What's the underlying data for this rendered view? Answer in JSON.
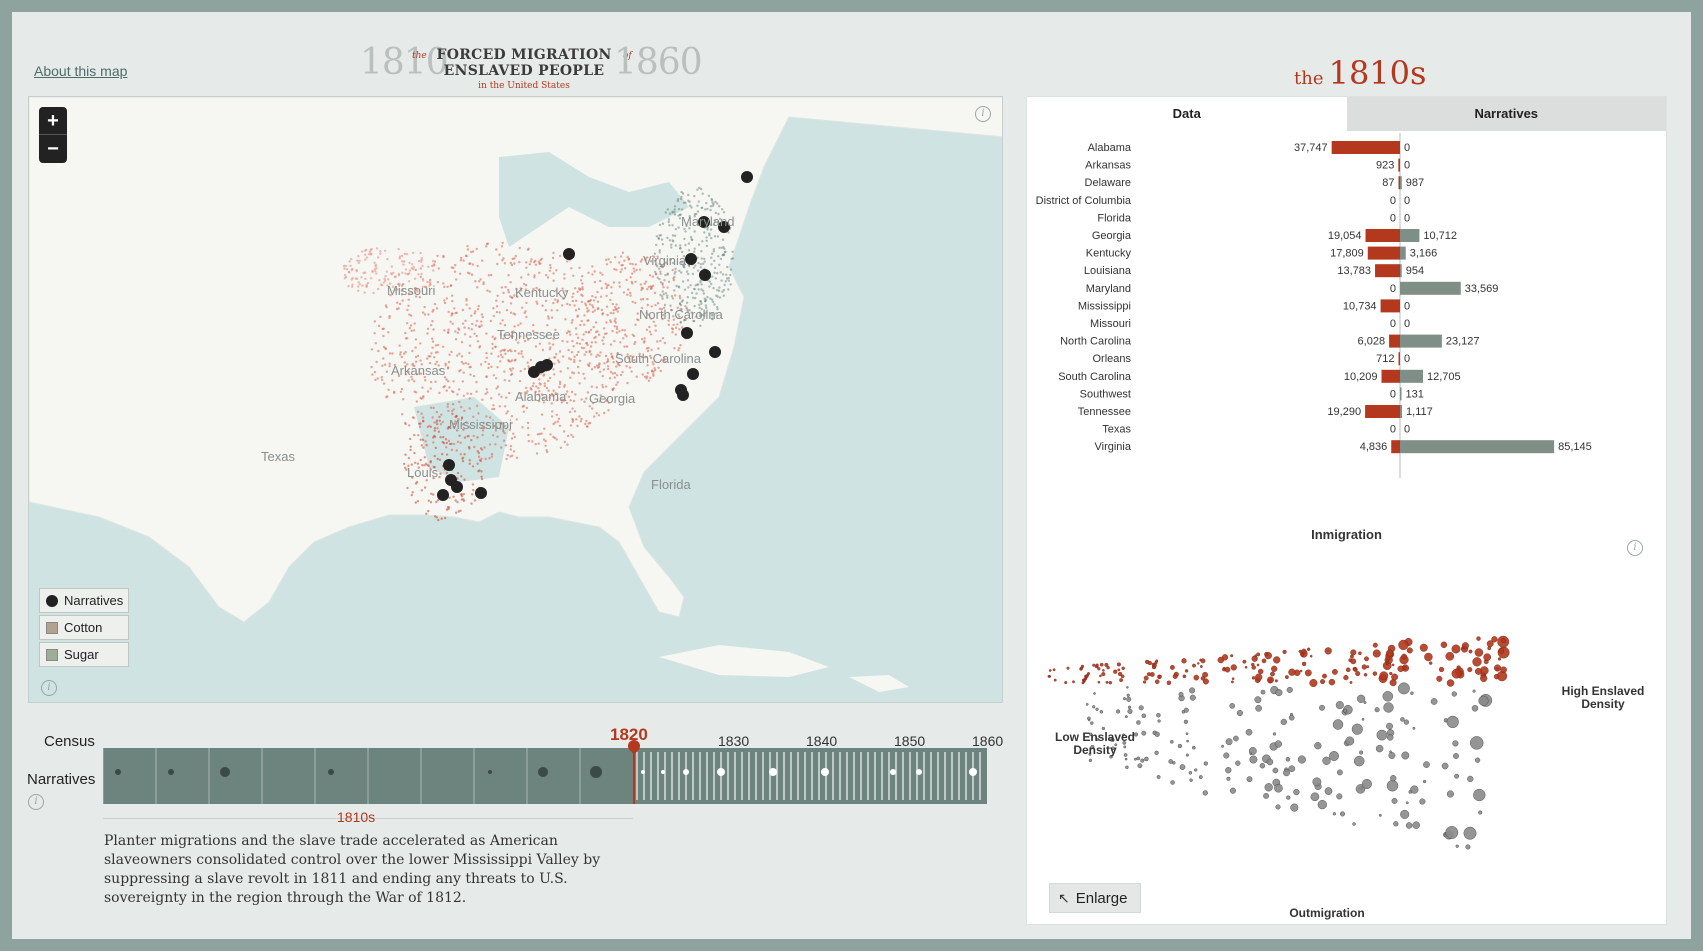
{
  "header": {
    "about_link": "About this map",
    "title_year_start": "1810",
    "title_the": "the",
    "title_line1": "FORCED MIGRATION",
    "title_line2": "ENSLAVED PEOPLE",
    "title_of": "of",
    "title_year_end": "1860",
    "title_sub": "in the United States",
    "decade_the": "the",
    "decade_value": "1810s"
  },
  "map": {
    "zoom_in": "+",
    "zoom_out": "−",
    "info": "i",
    "state_labels": [
      "Missouri",
      "Kentucky",
      "Virginia",
      "Maryland",
      "North Carolina",
      "Tennessee",
      "South Carolina",
      "Arkansas",
      "Alabama",
      "Georgia",
      "Mississippi",
      "Texas",
      "Louisiana",
      "Florida"
    ],
    "state_label_visible": [
      "Missouri",
      "Kentucky",
      "Virginia",
      "Maryland",
      "North Carolina",
      "Tennessee",
      "South Carolina",
      "Arkansas",
      "Alabama",
      "Georgia",
      "Mississippi",
      "Texas",
      "Louis",
      "Florida"
    ],
    "legend": [
      {
        "label": "Narratives",
        "swatch": "dot",
        "color": "#222222"
      },
      {
        "label": "Cotton",
        "swatch": "square",
        "color": "#b1a38f"
      },
      {
        "label": "Sugar",
        "swatch": "square",
        "color": "#9cae96"
      }
    ],
    "colors": {
      "water": "#cfe3e2",
      "land": "#f7f7f5",
      "immigration": "#c8432a",
      "outmigration": "#6d8a80"
    }
  },
  "timeline": {
    "census_label": "Census",
    "narratives_label": "Narratives",
    "current_year": "1820",
    "years": [
      "1830",
      "1840",
      "1850",
      "1860"
    ],
    "decade_caption": "1810s",
    "description": "Planter migrations and the slave trade accelerated as American slaveowners consolidated control over the lower Mississippi Valley by suppressing a slave revolt in 1811 and ending any threats to U.S. sovereignty in the region through the War of 1812."
  },
  "panel": {
    "tabs": [
      {
        "label": "Data",
        "active": true
      },
      {
        "label": "Narratives",
        "active": false
      }
    ],
    "scatter_title": "Inmigration",
    "scatter_bottom": "Outmigration",
    "scatter_left": "Low Enslaved Density",
    "scatter_right": "High Enslaved Density",
    "enlarge": "Enlarge"
  },
  "chart_data": [
    {
      "type": "bar",
      "categories": [
        "Alabama",
        "Arkansas",
        "Delaware",
        "District of Columbia",
        "Florida",
        "Georgia",
        "Kentucky",
        "Louisiana",
        "Maryland",
        "Mississippi",
        "Missouri",
        "North Carolina",
        "Orleans",
        "South Carolina",
        "Southwest",
        "Tennessee",
        "Texas",
        "Virginia"
      ],
      "series": [
        {
          "values": [
            37747,
            923,
            87,
            0,
            0,
            19054,
            17809,
            13783,
            0,
            10734,
            0,
            6028,
            712,
            10209,
            0,
            19290,
            0,
            4836
          ],
          "color": "#b3381e"
        },
        {
          "values": [
            0,
            0,
            987,
            0,
            0,
            10712,
            3166,
            954,
            33569,
            0,
            0,
            23127,
            0,
            12705,
            131,
            1117,
            0,
            85145
          ],
          "color": "#7f8e87"
        }
      ],
      "value_labels_left": [
        "37,747",
        "923",
        "87",
        "0",
        "0",
        "19,054",
        "17,809",
        "13,783",
        "0",
        "10,734",
        "0",
        "6,028",
        "712",
        "10,209",
        "0",
        "19,290",
        "0",
        "4,836"
      ],
      "value_labels_right": [
        "0",
        "0",
        "987",
        "0",
        "0",
        "10,712",
        "3,166",
        "954",
        "33,569",
        "0",
        "0",
        "23,127",
        "0",
        "12,705",
        "131",
        "1,117",
        "0",
        "85,145"
      ]
    }
  ]
}
